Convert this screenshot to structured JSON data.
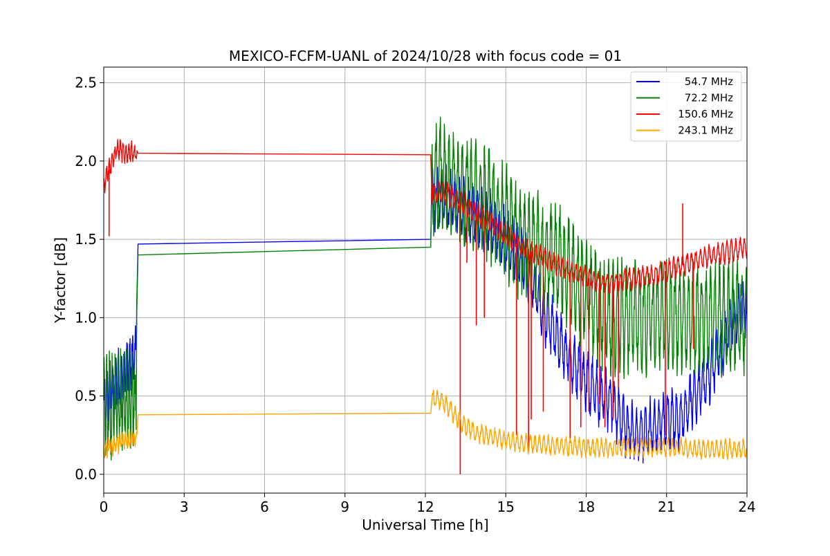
{
  "chart_data": {
    "type": "line",
    "title": "MEXICO-FCFM-UANL of 2024/10/28 with focus code = 01",
    "xlabel": "Universal Time [h]",
    "ylabel": "Y-factor [dB]",
    "xlim": [
      0,
      24
    ],
    "ylim": [
      -0.12,
      2.6
    ],
    "xticks": [
      0,
      3,
      6,
      9,
      12,
      15,
      18,
      21,
      24
    ],
    "xtick_labels": [
      "0",
      "3",
      "6",
      "9",
      "12",
      "15",
      "18",
      "21",
      "24"
    ],
    "yticks": [
      0.0,
      0.5,
      1.0,
      1.5,
      2.0,
      2.5
    ],
    "ytick_labels": [
      "0.0",
      "0.5",
      "1.0",
      "1.5",
      "2.0",
      "2.5"
    ],
    "grid": true,
    "legend_position": "top-right",
    "series": [
      {
        "name": "54.7 MHz",
        "color": "#0000ff",
        "x": [
          0,
          0.3,
          0.6,
          0.9,
          1.2,
          1.25,
          12.2,
          12.25,
          12.6,
          13.0,
          13.5,
          14.0,
          14.5,
          15.0,
          15.5,
          16.0,
          16.5,
          17.0,
          17.5,
          18.0,
          18.5,
          19.0,
          19.5,
          20.0,
          20.5,
          21.0,
          21.5,
          22.0,
          22.5,
          23.0,
          23.5,
          24.0
        ],
        "y": [
          0.45,
          0.55,
          0.6,
          0.7,
          0.75,
          1.47,
          1.5,
          1.75,
          1.78,
          1.75,
          1.7,
          1.65,
          1.6,
          1.5,
          1.4,
          1.25,
          1.0,
          0.85,
          0.7,
          0.6,
          0.5,
          0.45,
          0.3,
          0.25,
          0.3,
          0.35,
          0.35,
          0.5,
          0.6,
          0.8,
          1.0,
          1.1
        ],
        "noise": 0.22
      },
      {
        "name": "72.2 MHz",
        "color": "#008000",
        "x": [
          0,
          0.3,
          0.6,
          0.9,
          1.2,
          1.25,
          12.2,
          12.25,
          12.6,
          13.0,
          13.5,
          14.0,
          14.5,
          15.0,
          15.5,
          16.0,
          16.5,
          17.0,
          17.5,
          18.0,
          18.5,
          19.0,
          19.5,
          20.0,
          20.5,
          21.0,
          21.5,
          22.0,
          22.5,
          23.0,
          23.5,
          24.0
        ],
        "y": [
          0.4,
          0.45,
          0.45,
          0.5,
          0.45,
          1.4,
          1.45,
          1.9,
          1.9,
          1.85,
          1.8,
          1.75,
          1.7,
          1.6,
          1.5,
          1.45,
          1.4,
          1.35,
          1.25,
          1.15,
          1.05,
          1.0,
          1.0,
          1.0,
          1.0,
          1.0,
          1.0,
          1.0,
          1.0,
          1.0,
          1.0,
          1.0
        ],
        "noise": 0.4
      },
      {
        "name": "150.6 MHz",
        "color": "#ff0000",
        "x": [
          0,
          0.2,
          0.5,
          0.8,
          1.25,
          1.3,
          12.2,
          12.25,
          12.6,
          13.0,
          13.5,
          14.0,
          14.5,
          15.0,
          15.5,
          16.0,
          16.5,
          17.0,
          17.5,
          18.0,
          18.5,
          19.0,
          19.5,
          20.0,
          20.5,
          21.0,
          21.5,
          22.0,
          22.5,
          23.0,
          23.5,
          24.0
        ],
        "y": [
          1.85,
          1.95,
          2.08,
          2.05,
          2.05,
          2.05,
          2.04,
          1.8,
          1.8,
          1.78,
          1.72,
          1.65,
          1.6,
          1.52,
          1.46,
          1.42,
          1.38,
          1.33,
          1.29,
          1.26,
          1.22,
          1.22,
          1.25,
          1.25,
          1.27,
          1.3,
          1.33,
          1.36,
          1.39,
          1.41,
          1.43,
          1.45
        ],
        "noise": 0.08,
        "spikes": [
          [
            0.2,
            1.52
          ],
          [
            13.3,
            0.0
          ],
          [
            13.55,
            1.35
          ],
          [
            13.9,
            0.95
          ],
          [
            14.2,
            1.0
          ],
          [
            15.4,
            0.25
          ],
          [
            15.85,
            0.15
          ],
          [
            15.95,
            0.35
          ],
          [
            16.4,
            0.4
          ],
          [
            17.4,
            0.2
          ],
          [
            17.8,
            0.3
          ],
          [
            18.1,
            0.4
          ],
          [
            18.5,
            0.45
          ],
          [
            18.7,
            0.3
          ],
          [
            19.0,
            0.35
          ],
          [
            19.2,
            0.55
          ],
          [
            20.95,
            0.25
          ],
          [
            21.6,
            1.73
          ],
          [
            22.0,
            0.8
          ]
        ]
      },
      {
        "name": "243.1 MHz",
        "color": "#ffa500",
        "x": [
          0,
          0.3,
          0.6,
          0.9,
          1.25,
          1.3,
          12.2,
          12.25,
          12.6,
          13.0,
          13.5,
          14.0,
          14.5,
          15.0,
          15.5,
          16.0,
          16.5,
          17.0,
          17.5,
          18.0,
          18.5,
          19.0,
          19.5,
          20.0,
          20.5,
          21.0,
          21.5,
          22.0,
          22.5,
          23.0,
          23.5,
          24.0
        ],
        "y": [
          0.15,
          0.18,
          0.2,
          0.22,
          0.24,
          0.38,
          0.39,
          0.48,
          0.47,
          0.4,
          0.3,
          0.26,
          0.24,
          0.22,
          0.2,
          0.19,
          0.19,
          0.18,
          0.18,
          0.17,
          0.17,
          0.17,
          0.17,
          0.17,
          0.17,
          0.17,
          0.17,
          0.16,
          0.16,
          0.16,
          0.16,
          0.16
        ],
        "noise": 0.07
      }
    ]
  }
}
